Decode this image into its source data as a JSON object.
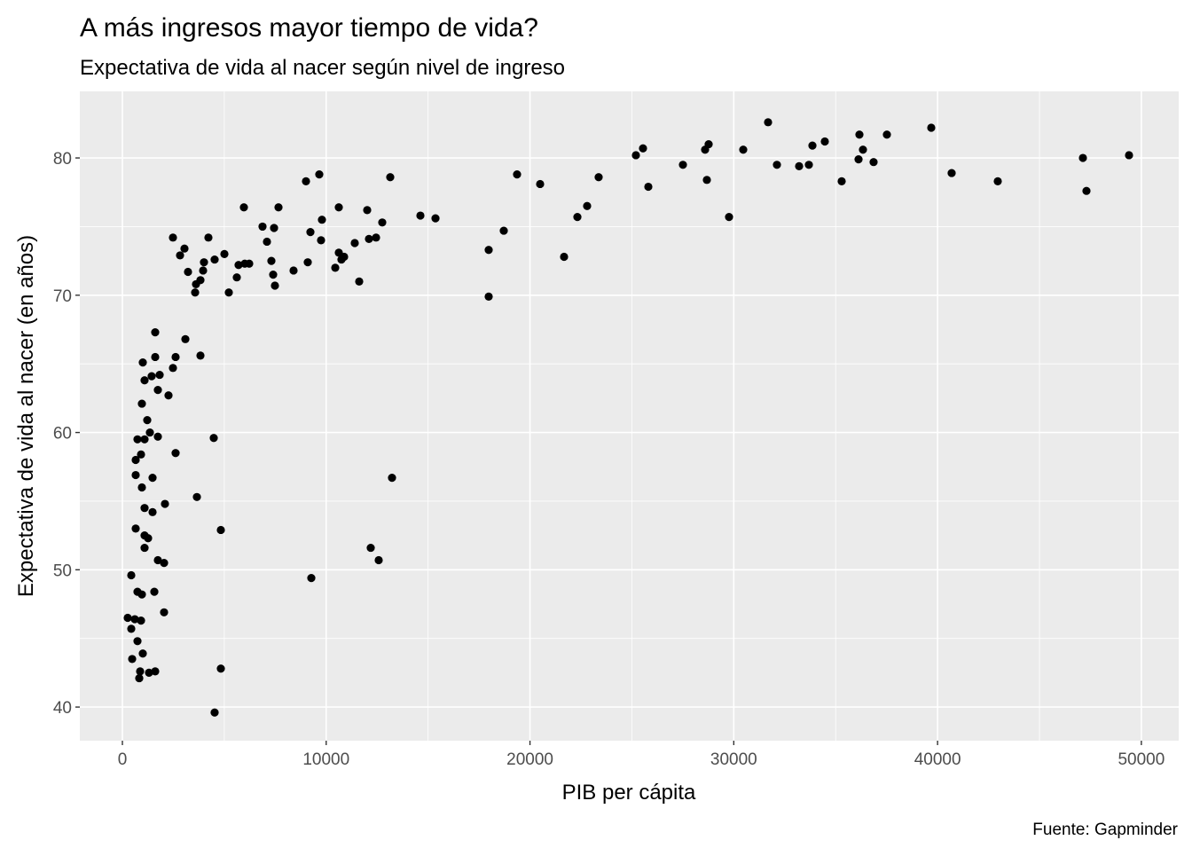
{
  "chart_data": {
    "type": "scatter",
    "title": "A más ingresos mayor tiempo de vida?",
    "subtitle": "Expectativa de vida al nacer según nivel de ingreso",
    "xlabel": "PIB per cápita",
    "ylabel": "Expectativa de vida al nacer (en años)",
    "caption": "Fuente: Gapminder",
    "xlim": [
      -2089,
      51832
    ],
    "ylim": [
      37.55,
      84.85
    ],
    "x_ticks": [
      0,
      10000,
      20000,
      30000,
      40000,
      50000
    ],
    "y_ticks": [
      40,
      50,
      60,
      70,
      80
    ],
    "grid": true,
    "colors": {
      "panel": "#EBEBEB",
      "point": "#000000",
      "grid": "#FFFFFF"
    },
    "points": [
      [
        31683,
        82.6
      ],
      [
        39690,
        82.2
      ],
      [
        36165,
        81.7
      ],
      [
        34468,
        81.2
      ],
      [
        33859,
        80.9
      ],
      [
        36339,
        80.6
      ],
      [
        37514,
        81.7
      ],
      [
        30464,
        80.6
      ],
      [
        28767,
        81.0
      ],
      [
        28593,
        80.6
      ],
      [
        25546,
        80.7
      ],
      [
        25198,
        80.2
      ],
      [
        49395,
        80.2
      ],
      [
        47132,
        80.0
      ],
      [
        36122,
        79.9
      ],
      [
        36861,
        79.7
      ],
      [
        32118,
        79.5
      ],
      [
        33206,
        79.4
      ],
      [
        33685,
        79.5
      ],
      [
        27505,
        79.5
      ],
      [
        40691,
        78.9
      ],
      [
        19366,
        78.8
      ],
      [
        13143,
        78.6
      ],
      [
        28680,
        78.4
      ],
      [
        35295,
        78.3
      ],
      [
        42954,
        78.3
      ],
      [
        20498,
        78.1
      ],
      [
        25807,
        77.9
      ],
      [
        47306,
        77.6
      ],
      [
        23370,
        78.6
      ],
      [
        9009,
        78.3
      ],
      [
        9661,
        78.8
      ],
      [
        10619,
        76.4
      ],
      [
        12012,
        76.2
      ],
      [
        29768,
        75.7
      ],
      [
        22804,
        76.5
      ],
      [
        22326,
        75.7
      ],
      [
        14623,
        75.8
      ],
      [
        15363,
        75.6
      ],
      [
        18714,
        74.7
      ],
      [
        17974,
        73.3
      ],
      [
        21673,
        72.8
      ],
      [
        17974,
        69.9
      ],
      [
        5962,
        76.4
      ],
      [
        7660,
        76.4
      ],
      [
        6876,
        75.0
      ],
      [
        9792,
        75.5
      ],
      [
        7094,
        73.9
      ],
      [
        7442,
        74.9
      ],
      [
        9226,
        74.6
      ],
      [
        9748,
        74.0
      ],
      [
        2481,
        74.2
      ],
      [
        3046,
        73.4
      ],
      [
        2829,
        72.9
      ],
      [
        4221,
        74.2
      ],
      [
        5005,
        73.0
      ],
      [
        4004,
        72.4
      ],
      [
        4526,
        72.6
      ],
      [
        3220,
        71.7
      ],
      [
        6006,
        72.3
      ],
      [
        5701,
        72.2
      ],
      [
        6223,
        72.3
      ],
      [
        5614,
        71.3
      ],
      [
        3960,
        71.8
      ],
      [
        3830,
        71.1
      ],
      [
        3612,
        70.8
      ],
      [
        3569,
        70.2
      ],
      [
        5222,
        70.2
      ],
      [
        7311,
        72.5
      ],
      [
        7398,
        71.5
      ],
      [
        7485,
        70.7
      ],
      [
        8399,
        71.8
      ],
      [
        9096,
        72.4
      ],
      [
        10445,
        72.0
      ],
      [
        10619,
        73.1
      ],
      [
        10880,
        72.8
      ],
      [
        10749,
        72.6
      ],
      [
        11402,
        73.8
      ],
      [
        12099,
        74.1
      ],
      [
        12447,
        74.2
      ],
      [
        12751,
        75.3
      ],
      [
        11620,
        71.0
      ],
      [
        1610,
        67.3
      ],
      [
        3090,
        66.8
      ],
      [
        1610,
        65.5
      ],
      [
        2611,
        65.5
      ],
      [
        3830,
        65.6
      ],
      [
        1001,
        65.1
      ],
      [
        2481,
        64.7
      ],
      [
        1828,
        64.2
      ],
      [
        1436,
        64.1
      ],
      [
        1088,
        63.8
      ],
      [
        1741,
        63.1
      ],
      [
        2263,
        62.7
      ],
      [
        957,
        62.1
      ],
      [
        1219,
        60.9
      ],
      [
        1349,
        60.0
      ],
      [
        1741,
        59.7
      ],
      [
        740,
        59.5
      ],
      [
        1088,
        59.5
      ],
      [
        4483,
        59.6
      ],
      [
        914,
        58.4
      ],
      [
        653,
        58.0
      ],
      [
        2611,
        58.5
      ],
      [
        653,
        56.9
      ],
      [
        1480,
        56.7
      ],
      [
        957,
        56.0
      ],
      [
        3656,
        55.3
      ],
      [
        2089,
        54.8
      ],
      [
        1088,
        54.5
      ],
      [
        1480,
        54.2
      ],
      [
        4831,
        52.9
      ],
      [
        653,
        53.0
      ],
      [
        1088,
        52.5
      ],
      [
        1262,
        52.3
      ],
      [
        1088,
        51.6
      ],
      [
        1741,
        50.7
      ],
      [
        2045,
        50.5
      ],
      [
        435,
        49.6
      ],
      [
        740,
        48.4
      ],
      [
        957,
        48.2
      ],
      [
        1567,
        48.4
      ],
      [
        2045,
        46.9
      ],
      [
        261,
        46.5
      ],
      [
        609,
        46.4
      ],
      [
        914,
        46.3
      ],
      [
        435,
        45.7
      ],
      [
        740,
        44.8
      ],
      [
        1001,
        43.9
      ],
      [
        479,
        43.5
      ],
      [
        4831,
        42.8
      ],
      [
        870,
        42.6
      ],
      [
        1610,
        42.6
      ],
      [
        1306,
        42.5
      ],
      [
        827,
        42.1
      ],
      [
        4526,
        39.6
      ],
      [
        13230,
        56.7
      ],
      [
        12186,
        51.6
      ],
      [
        12577,
        50.7
      ],
      [
        9270,
        49.4
      ]
    ]
  }
}
